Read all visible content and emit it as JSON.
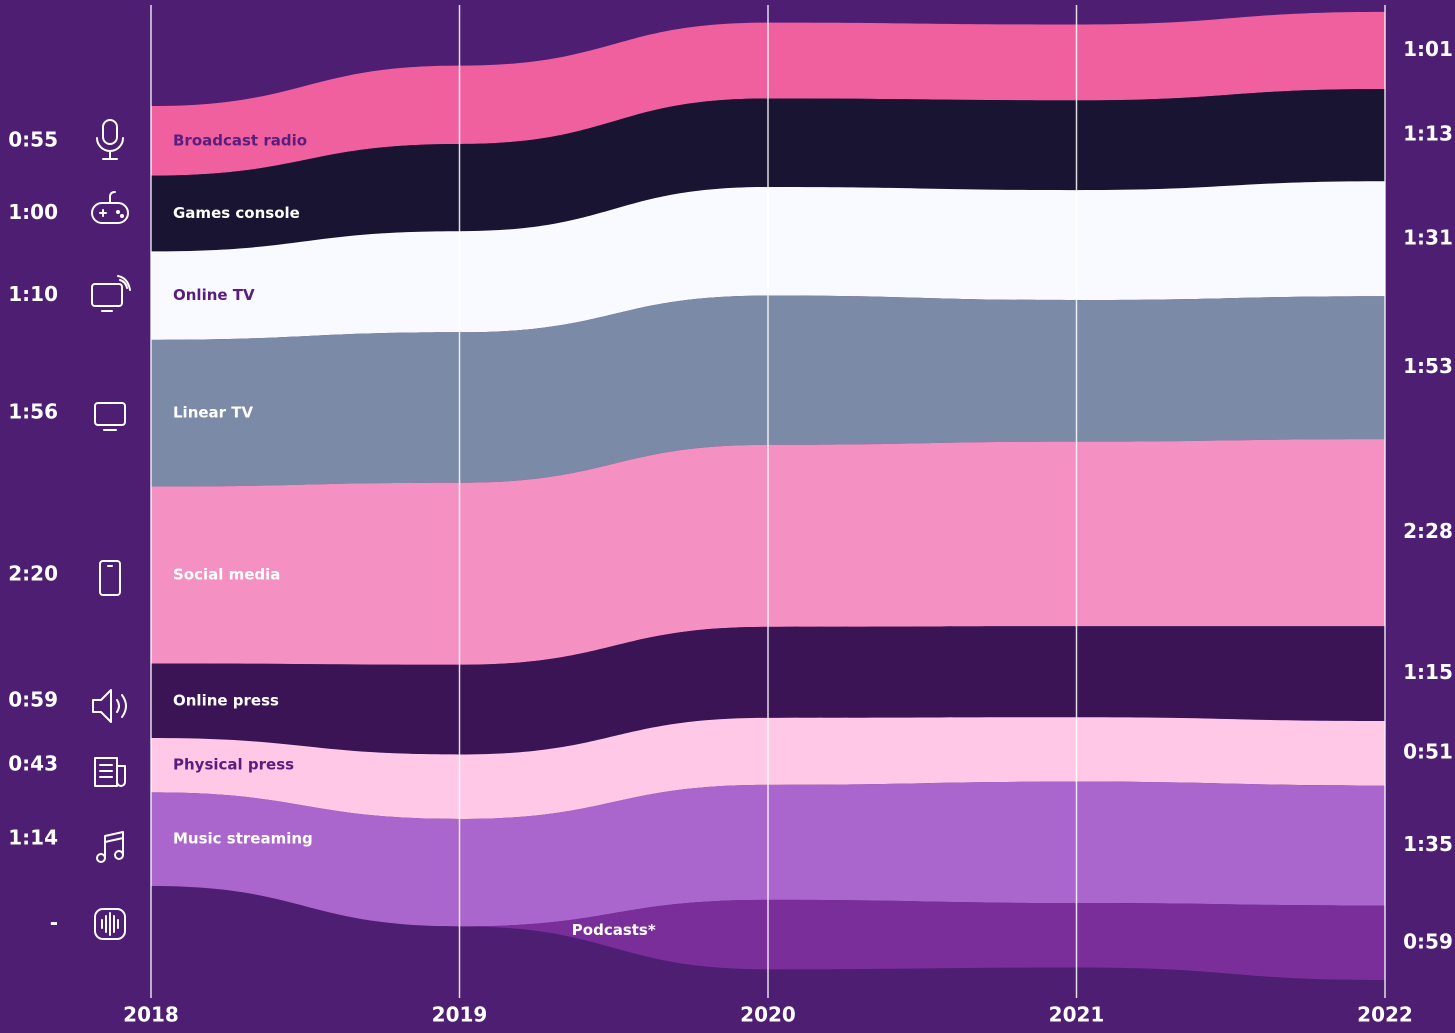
{
  "chart_data": {
    "type": "streamgraph",
    "categories": [
      "2018",
      "2019",
      "2020",
      "2021",
      "2022"
    ],
    "series": [
      {
        "name": "Broadcast radio",
        "color": "#f0609e",
        "label_color": "#5a1d7e",
        "values": [
          55,
          62,
          60,
          60,
          61
        ],
        "value_labels": [
          "0:55",
          null,
          null,
          null,
          "1:01"
        ]
      },
      {
        "name": "Games console",
        "color": "#181432",
        "label_color": "#ffffff",
        "values": [
          60,
          69,
          70,
          71,
          73
        ],
        "value_labels": [
          "1:00",
          null,
          null,
          null,
          "1:13"
        ]
      },
      {
        "name": "Online TV",
        "color": "#f8faff",
        "label_color": "#5a1d7e",
        "values": [
          70,
          80,
          86,
          87,
          91
        ],
        "value_labels": [
          "1:10",
          null,
          null,
          null,
          "1:31"
        ]
      },
      {
        "name": "Linear TV",
        "color": "#7b8aa6",
        "label_color": "#ffffff",
        "values": [
          116,
          119,
          118,
          112,
          113
        ],
        "value_labels": [
          "1:56",
          null,
          null,
          null,
          "1:53"
        ]
      },
      {
        "name": "Social media",
        "color": "#f590c2",
        "label_color": "#ffffff",
        "values": [
          140,
          144,
          144,
          146,
          148
        ],
        "value_labels": [
          "2:20",
          null,
          null,
          null,
          "2:28"
        ]
      },
      {
        "name": "Online press",
        "color": "#3a1454",
        "label_color": "#ffffff",
        "values": [
          59,
          71,
          72,
          72,
          75
        ],
        "value_labels": [
          "0:59",
          null,
          null,
          null,
          "1:15"
        ]
      },
      {
        "name": "Physical press",
        "color": "#ffc8e6",
        "label_color": "#5a1d7e",
        "values": [
          43,
          51,
          53,
          51,
          51
        ],
        "value_labels": [
          "0:43",
          null,
          null,
          null,
          "0:51"
        ]
      },
      {
        "name": "Music streaming",
        "color": "#aa66cc",
        "label_color": "#ffffff",
        "values": [
          74,
          85,
          91,
          96,
          95
        ],
        "value_labels": [
          "1:14",
          null,
          null,
          null,
          "1:35"
        ]
      },
      {
        "name": "Podcasts*",
        "color": "#7a2e9a",
        "label_color": "#ffffff",
        "values": [
          null,
          0,
          55,
          51,
          59
        ],
        "value_labels": [
          "-",
          null,
          null,
          null,
          "0:59"
        ]
      }
    ]
  }
}
